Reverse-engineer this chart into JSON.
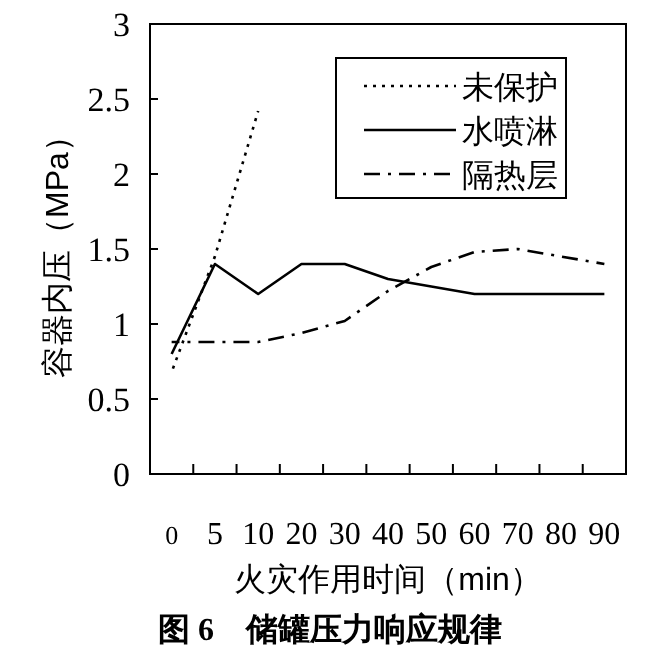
{
  "chart_data": {
    "type": "line",
    "title": "图 6　储罐压力响应规律",
    "xlabel": "火灾作用时间（min）",
    "ylabel": "容器内压（MPa）",
    "categories": [
      "0",
      "5",
      "10",
      "20",
      "30",
      "40",
      "50",
      "60",
      "70",
      "80",
      "90"
    ],
    "series": [
      {
        "name": "未保护",
        "color": "#000000",
        "line_style": "dotted",
        "values": [
          0.68,
          1.45,
          2.42,
          null,
          null,
          null,
          null,
          null,
          null,
          null,
          null
        ]
      },
      {
        "name": "水喷淋",
        "color": "#000000",
        "line_style": "solid",
        "values": [
          0.8,
          1.4,
          1.2,
          1.4,
          1.4,
          1.3,
          1.25,
          1.2,
          1.2,
          1.2,
          1.2
        ]
      },
      {
        "name": "隔热层",
        "color": "#000000",
        "line_style": "dashdot",
        "values": [
          0.88,
          0.88,
          0.88,
          0.94,
          1.02,
          1.22,
          1.38,
          1.48,
          1.5,
          1.45,
          1.4
        ]
      }
    ],
    "ylim": [
      0,
      3
    ],
    "yticks": [
      0,
      0.5,
      1,
      1.5,
      2,
      2.5,
      3
    ],
    "grid": false,
    "legend": "top right",
    "marker": "none"
  }
}
